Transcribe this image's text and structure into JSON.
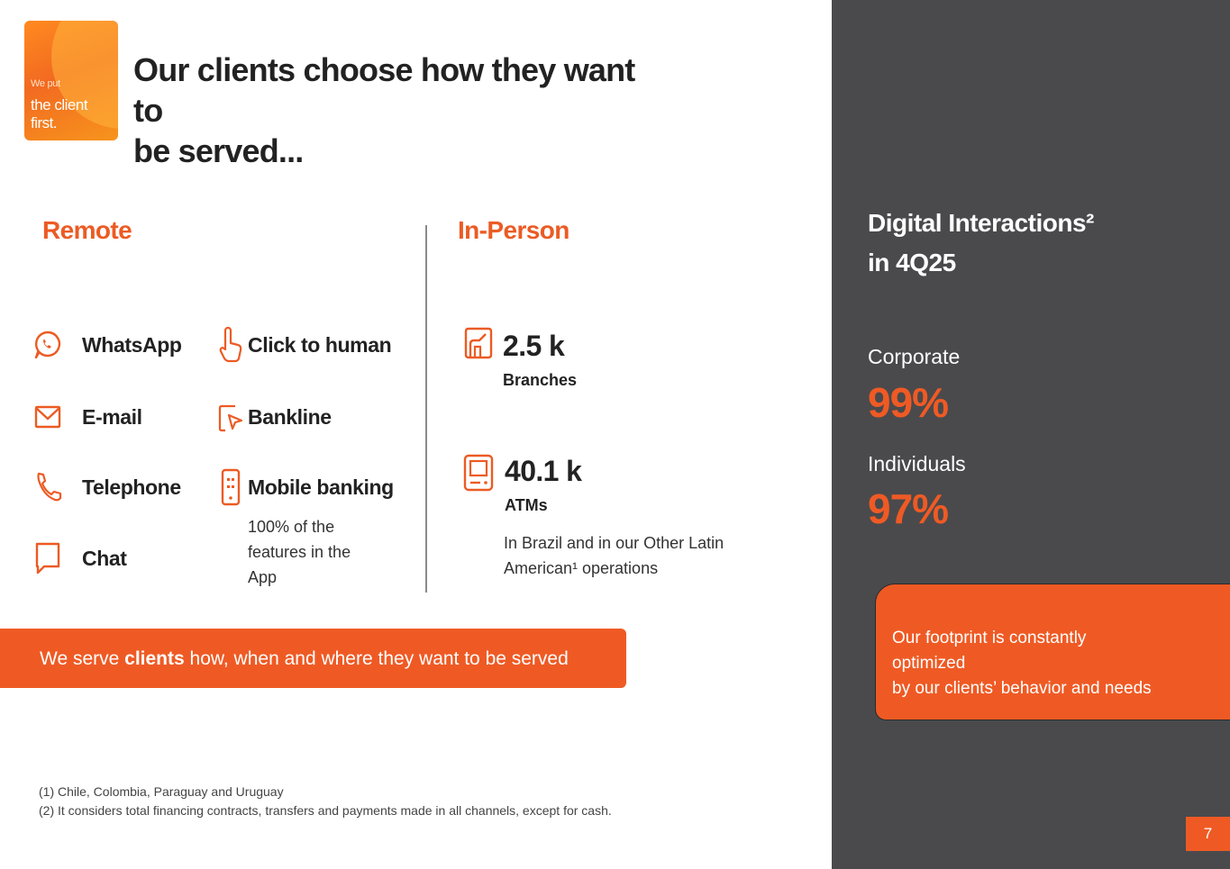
{
  "logo": {
    "line1": "We put",
    "line2": "the client",
    "line3": "first."
  },
  "title": {
    "line1": "Our clients choose how they want to",
    "line2": "be served..."
  },
  "remote": {
    "heading": "Remote",
    "left_items": [
      {
        "label": "WhatsApp",
        "icon": "whatsapp-icon"
      },
      {
        "label": "E-mail",
        "icon": "envelope-icon"
      },
      {
        "label": "Telephone",
        "icon": "phone-icon"
      },
      {
        "label": "Chat",
        "icon": "chat-bubble-icon"
      }
    ],
    "right_items": [
      {
        "label": "Click to human",
        "icon": "hand-pointer-icon"
      },
      {
        "label": "Bankline",
        "icon": "cursor-click-icon"
      },
      {
        "label": "Mobile banking",
        "icon": "mobile-phone-icon"
      }
    ],
    "mobile_note": [
      "100% of the",
      "features in the",
      "App"
    ]
  },
  "in_person": {
    "heading": "In-Person",
    "branches": {
      "value": "2.5 k",
      "label": "Branches",
      "icon": "branch-building-icon"
    },
    "atms": {
      "value": "40.1 k",
      "label": "ATMs",
      "icon": "atm-icon"
    },
    "note": [
      "In Brazil and in our Other Latin",
      "American¹ operations"
    ]
  },
  "banner": {
    "pre": "We serve ",
    "bold": "clients",
    "post": " how, when and where they want to be served"
  },
  "footnotes": [
    "(1) Chile, Colombia, Paraguay and Uruguay",
    "(2) It considers total financing contracts, transfers and payments made in all channels, except for cash."
  ],
  "sidebar": {
    "title_line1": "Digital Interactions²",
    "title_line2": "in 4Q25",
    "corporate_label": "Corporate",
    "corporate_value": "99%",
    "individuals_label": "Individuals",
    "individuals_value": "97%",
    "box_text_line1": "Our  footprint is constantly optimized",
    "box_text_line2": "by our clients’ behavior and needs"
  },
  "page_number": "7",
  "colors": {
    "accent": "#ef5a24",
    "sidebar_bg": "#4a4a4c",
    "text": "#222222"
  }
}
